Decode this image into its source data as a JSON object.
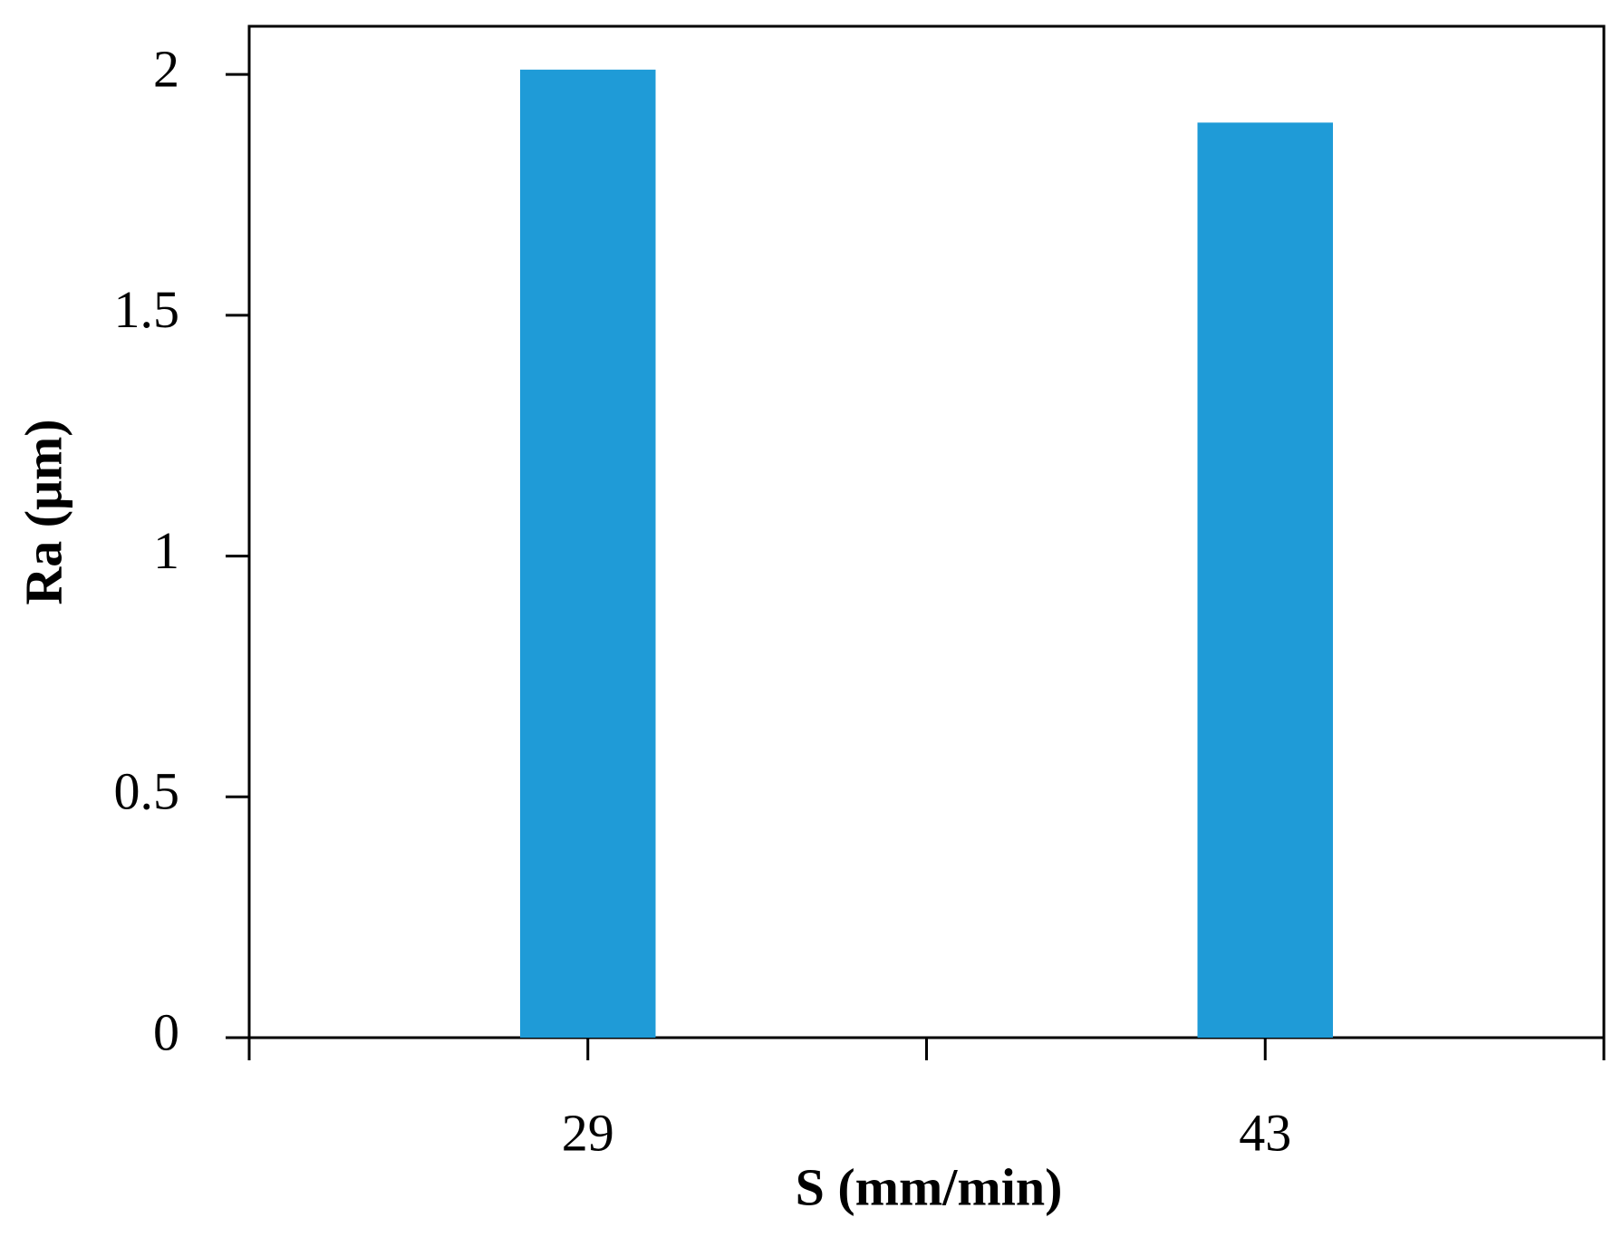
{
  "chart_data": {
    "type": "bar",
    "x_label": "S (mm/min)",
    "y_label": "Ra (μm)",
    "categories": [
      "29",
      "43"
    ],
    "values": [
      2.01,
      1.9
    ],
    "color": "#1f9bd7",
    "ylim": [
      0,
      2.1
    ],
    "yticks": [
      0,
      0.5,
      1,
      1.5,
      2
    ],
    "grid": false
  }
}
